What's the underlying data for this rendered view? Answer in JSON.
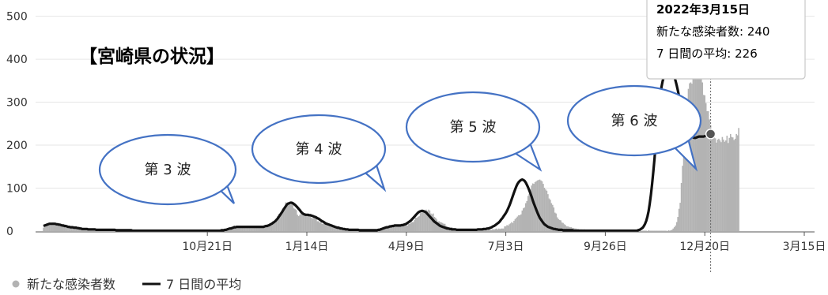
{
  "chart_data": {
    "type": "bar",
    "title": "【宮崎県の状況】",
    "xlabel": "",
    "ylabel": "",
    "ylim": [
      0,
      500
    ],
    "yticks": [
      0,
      100,
      200,
      300,
      400,
      500
    ],
    "ytick_labels": [
      "0",
      "100",
      "200",
      "300",
      "400",
      "500"
    ],
    "xtick_labels": [
      "10月21日",
      "1月14日",
      "4月9日",
      "7月3日",
      "9月26日",
      "12月20日",
      "3月15日"
    ],
    "xtick_days": [
      140,
      225,
      310,
      395,
      480,
      565,
      650
    ],
    "grid": true,
    "legend_position": "bottom-left",
    "series": [
      {
        "name": "新たな感染者数",
        "kind": "bars",
        "color": "#b3b3b3",
        "start_day": 0,
        "values": [
          8,
          10,
          13,
          15,
          16,
          18,
          18,
          17,
          20,
          18,
          19,
          19,
          16,
          16,
          16,
          16,
          12,
          12,
          11,
          13,
          10,
          11,
          10,
          7,
          9,
          9,
          9,
          7,
          9,
          6,
          9,
          5,
          6,
          5,
          6,
          4,
          5,
          5,
          3,
          5,
          4,
          4,
          5,
          4,
          5,
          3,
          3,
          4,
          4,
          3,
          2,
          3,
          3,
          4,
          2,
          4,
          3,
          2,
          3,
          3,
          4,
          3,
          2,
          2,
          1,
          2,
          2,
          2,
          2,
          1,
          2,
          2,
          2,
          3,
          2,
          1,
          1,
          1,
          2,
          0,
          1,
          1,
          1,
          1,
          1,
          1,
          0,
          1,
          2,
          1,
          1,
          1,
          2,
          1,
          1,
          1,
          1,
          0,
          1,
          2,
          2,
          1,
          1,
          1,
          1,
          1,
          0,
          2,
          1,
          0,
          1,
          1,
          0,
          1,
          1,
          1,
          0,
          2,
          1,
          0,
          0,
          2,
          1,
          1,
          1,
          1,
          1,
          0,
          1,
          1,
          0,
          2,
          0,
          1,
          1,
          1,
          1,
          2,
          1,
          0,
          0,
          0,
          1,
          1,
          1,
          1,
          1,
          1,
          0,
          1,
          2,
          1,
          1,
          3,
          3,
          3,
          3,
          7,
          4,
          6,
          8,
          7,
          10,
          13,
          12,
          8,
          7,
          9,
          11,
          9,
          11,
          12,
          9,
          10,
          12,
          10,
          10,
          9,
          7,
          11,
          10,
          11,
          8,
          11,
          9,
          9,
          10,
          8,
          11,
          12,
          14,
          12,
          14,
          15,
          18,
          17,
          23,
          22,
          19,
          26,
          35,
          40,
          41,
          45,
          45,
          54,
          57,
          67,
          65,
          67,
          63,
          62,
          68,
          64,
          53,
          51,
          49,
          38,
          35,
          38,
          40,
          38,
          39,
          38,
          36,
          36,
          36,
          38,
          40,
          31,
          30,
          32,
          33,
          30,
          23,
          23,
          20,
          21,
          17,
          17,
          19,
          19,
          16,
          12,
          12,
          14,
          12,
          11,
          12,
          7,
          9,
          8,
          10,
          6,
          5,
          5,
          6,
          7,
          5,
          4,
          5,
          3,
          3,
          4,
          4,
          3,
          3,
          3,
          3,
          2,
          2,
          3,
          2,
          2,
          2,
          3,
          2,
          3,
          2,
          1,
          1,
          1,
          2,
          2,
          1,
          1,
          1,
          3,
          2,
          2,
          4,
          7,
          6,
          7,
          9,
          10,
          9,
          12,
          9,
          10,
          14,
          10,
          12,
          14,
          14,
          13,
          13,
          14,
          12,
          13,
          15,
          13,
          17,
          17,
          20,
          21,
          21,
          26,
          31,
          31,
          33,
          35,
          42,
          43,
          45,
          48,
          44,
          50,
          47,
          50,
          48,
          41,
          39,
          41,
          33,
          31,
          27,
          22,
          23,
          21,
          20,
          19,
          17,
          17,
          12,
          11,
          9,
          9,
          8,
          9,
          7,
          7,
          6,
          4,
          4,
          4,
          4,
          4,
          5,
          3,
          2,
          4,
          3,
          3,
          3,
          3,
          2,
          2,
          4,
          2,
          3,
          3,
          4,
          2,
          3,
          1,
          4,
          3,
          5,
          3,
          3,
          4,
          3,
          3,
          5,
          3,
          5,
          6,
          4,
          6,
          5,
          6,
          6,
          6,
          11,
          11,
          14,
          13,
          16,
          18,
          21,
          19,
          24,
          28,
          31,
          34,
          37,
          37,
          39,
          48,
          53,
          55,
          65,
          70,
          82,
          87,
          97,
          106,
          111,
          110,
          114,
          116,
          118,
          119,
          120,
          118,
          116,
          110,
          101,
          97,
          94,
          86,
          76,
          73,
          65,
          61,
          55,
          43,
          41,
          32,
          28,
          26,
          25,
          20,
          19,
          16,
          14,
          11,
          11,
          10,
          9,
          9,
          7,
          7,
          6,
          6,
          5,
          5,
          4,
          4,
          4,
          3,
          4,
          3,
          3,
          3,
          3,
          2,
          2,
          3,
          2,
          2,
          2,
          2,
          1,
          2,
          1,
          1,
          1,
          1,
          2,
          1,
          1,
          1,
          1,
          1,
          0,
          1,
          1,
          1,
          0,
          1,
          1,
          1,
          1,
          0,
          1,
          0,
          2,
          1,
          2,
          1,
          1,
          0,
          1,
          1,
          1,
          0,
          1,
          1,
          1,
          0,
          1,
          1,
          1,
          1,
          0,
          2,
          1,
          1,
          1,
          1,
          1,
          1,
          1,
          1,
          1,
          1,
          1,
          1,
          1,
          1,
          1,
          0,
          2,
          1,
          2,
          3,
          6,
          9,
          13,
          21,
          33,
          52,
          66,
          112,
          152,
          195,
          233,
          275,
          304,
          331,
          344,
          346,
          343,
          357,
          366,
          371,
          361,
          367,
          375,
          362,
          355,
          346,
          317,
          316,
          298,
          279,
          279,
          260,
          246,
          236,
          223,
          227,
          216,
          206,
          213,
          215,
          211,
          207,
          219,
          213,
          208,
          211,
          222,
          205,
          217,
          226,
          219,
          218,
          212,
          215,
          226,
          223,
          240
        ]
      },
      {
        "name": "7 日間の平均",
        "kind": "line",
        "color": "#111111",
        "start_day": 0,
        "values": [
          12,
          13,
          14,
          15,
          16,
          17,
          17,
          17,
          17,
          17,
          17,
          16,
          16,
          15,
          15,
          14,
          13,
          13,
          12,
          12,
          11,
          10,
          10,
          9,
          9,
          9,
          8,
          8,
          8,
          7,
          7,
          6,
          6,
          5,
          5,
          5,
          5,
          5,
          4,
          4,
          4,
          4,
          4,
          4,
          4,
          3,
          3,
          3,
          3,
          3,
          3,
          3,
          3,
          3,
          3,
          3,
          3,
          3,
          3,
          3,
          3,
          3,
          2,
          2,
          2,
          2,
          2,
          2,
          2,
          2,
          2,
          2,
          2,
          2,
          2,
          2,
          1,
          1,
          1,
          1,
          1,
          1,
          1,
          1,
          1,
          1,
          1,
          1,
          1,
          1,
          1,
          1,
          1,
          1,
          1,
          1,
          1,
          1,
          1,
          1,
          1,
          1,
          1,
          1,
          1,
          1,
          1,
          1,
          1,
          1,
          1,
          1,
          1,
          1,
          1,
          1,
          1,
          1,
          1,
          1,
          1,
          1,
          1,
          1,
          1,
          1,
          1,
          1,
          1,
          1,
          1,
          1,
          1,
          1,
          1,
          1,
          1,
          1,
          1,
          1,
          1,
          1,
          1,
          1,
          1,
          1,
          1,
          1,
          1,
          1,
          1,
          1,
          2,
          2,
          2,
          3,
          3,
          4,
          5,
          6,
          6,
          7,
          8,
          9,
          9,
          10,
          10,
          10,
          10,
          10,
          10,
          10,
          10,
          10,
          10,
          10,
          10,
          10,
          10,
          10,
          10,
          10,
          10,
          10,
          10,
          10,
          10,
          10,
          10,
          11,
          12,
          12,
          13,
          14,
          16,
          17,
          19,
          21,
          23,
          26,
          29,
          33,
          37,
          41,
          45,
          50,
          54,
          58,
          62,
          64,
          65,
          66,
          66,
          65,
          63,
          61,
          58,
          55,
          52,
          49,
          45,
          42,
          40,
          39,
          38,
          38,
          38,
          37,
          37,
          36,
          35,
          34,
          33,
          32,
          30,
          29,
          27,
          25,
          23,
          22,
          20,
          18,
          17,
          16,
          15,
          14,
          13,
          12,
          11,
          10,
          9,
          8,
          8,
          7,
          6,
          6,
          5,
          5,
          4,
          4,
          4,
          3,
          3,
          3,
          3,
          3,
          3,
          3,
          3,
          3,
          2,
          2,
          2,
          2,
          2,
          2,
          2,
          2,
          2,
          2,
          2,
          2,
          2,
          2,
          2,
          2,
          3,
          3,
          4,
          5,
          6,
          7,
          8,
          9,
          9,
          10,
          11,
          11,
          12,
          12,
          13,
          13,
          13,
          13,
          13,
          13,
          14,
          14,
          15,
          16,
          17,
          19,
          21,
          23,
          25,
          28,
          31,
          34,
          37,
          40,
          43,
          45,
          46,
          47,
          47,
          46,
          45,
          43,
          40,
          37,
          34,
          31,
          28,
          25,
          22,
          20,
          18,
          16,
          14,
          12,
          11,
          10,
          9,
          8,
          7,
          6,
          6,
          5,
          5,
          4,
          4,
          4,
          4,
          3,
          3,
          3,
          3,
          3,
          3,
          3,
          3,
          3,
          3,
          3,
          3,
          3,
          3,
          3,
          3,
          3,
          3,
          4,
          4,
          4,
          4,
          4,
          5,
          5,
          5,
          6,
          6,
          7,
          8,
          9,
          11,
          12,
          14,
          16,
          18,
          20,
          23,
          27,
          30,
          34,
          38,
          42,
          47,
          53,
          59,
          66,
          74,
          82,
          90,
          97,
          104,
          110,
          114,
          117,
          119,
          120,
          119,
          117,
          113,
          108,
          102,
          95,
          88,
          80,
          72,
          64,
          57,
          50,
          43,
          37,
          31,
          27,
          23,
          19,
          16,
          14,
          12,
          10,
          9,
          8,
          7,
          6,
          5,
          5,
          4,
          4,
          3,
          3,
          3,
          3,
          2,
          2,
          2,
          2,
          2,
          2,
          2,
          2,
          2,
          1,
          1,
          1,
          1,
          1,
          1,
          1,
          1,
          1,
          1,
          1,
          1,
          1,
          1,
          1,
          1,
          1,
          1,
          1,
          1,
          1,
          1,
          1,
          1,
          1,
          1,
          1,
          1,
          1,
          1,
          1,
          1,
          1,
          1,
          1,
          1,
          1,
          1,
          1,
          1,
          1,
          1,
          1,
          1,
          1,
          1,
          1,
          1,
          1,
          1,
          1,
          1,
          1,
          1,
          1,
          2,
          3,
          4,
          6,
          8,
          12,
          17,
          24,
          34,
          47,
          64,
          85,
          110,
          138,
          168,
          200,
          233,
          264,
          292,
          316,
          335,
          349,
          359,
          366,
          371,
          374,
          376,
          377,
          375,
          372,
          366,
          359,
          350,
          339,
          327,
          314,
          301,
          288,
          275,
          263,
          252,
          243,
          236,
          230,
          226,
          223,
          220,
          218,
          217,
          217,
          218,
          219,
          220,
          220,
          220,
          220,
          220,
          221,
          222,
          223,
          224,
          225,
          226
        ]
      }
    ],
    "annotations": [
      {
        "text": "第 3 波",
        "wave": 3
      },
      {
        "text": "第 4 波",
        "wave": 4
      },
      {
        "text": "第 5 波",
        "wave": 5
      },
      {
        "text": "第 6 波",
        "wave": 6
      }
    ],
    "tooltip": {
      "date": "2022年3月15日",
      "line1": "新たな感染者数: 240",
      "line2": "7 日間の平均: 226"
    },
    "legend": [
      "新たな感染者数",
      "7 日間の平均"
    ]
  }
}
